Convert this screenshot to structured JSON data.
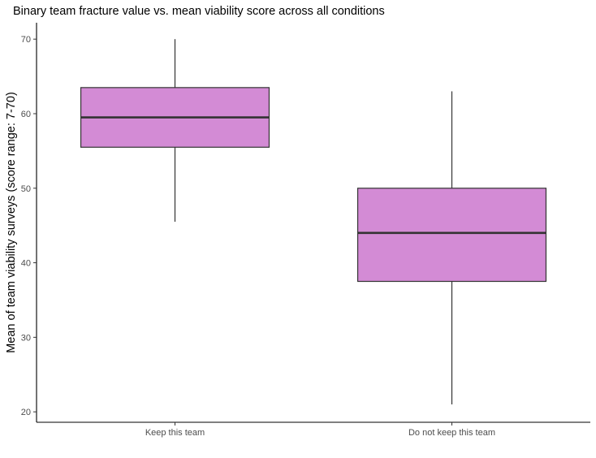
{
  "chart_data": {
    "type": "boxplot",
    "title": "Binary team fracture value vs. mean viability score across all conditions",
    "xlabel": "",
    "ylabel": "Mean of team viability surveys (score range: 7-70)",
    "ylim": [
      18.6,
      72.2
    ],
    "yticks": [
      20,
      30,
      40,
      50,
      60,
      70
    ],
    "grid": false,
    "legend": "none",
    "fill_color": "#d38bd5",
    "line_color": "#333333",
    "categories": [
      "Keep this team",
      "Do not keep this team"
    ],
    "boxes": [
      {
        "category": "Keep this team",
        "min": 45.5,
        "q1": 55.5,
        "median": 59.5,
        "q3": 63.5,
        "max": 70
      },
      {
        "category": "Do not keep this team",
        "min": 21,
        "q1": 37.5,
        "median": 44,
        "q3": 50,
        "max": 63
      }
    ]
  }
}
